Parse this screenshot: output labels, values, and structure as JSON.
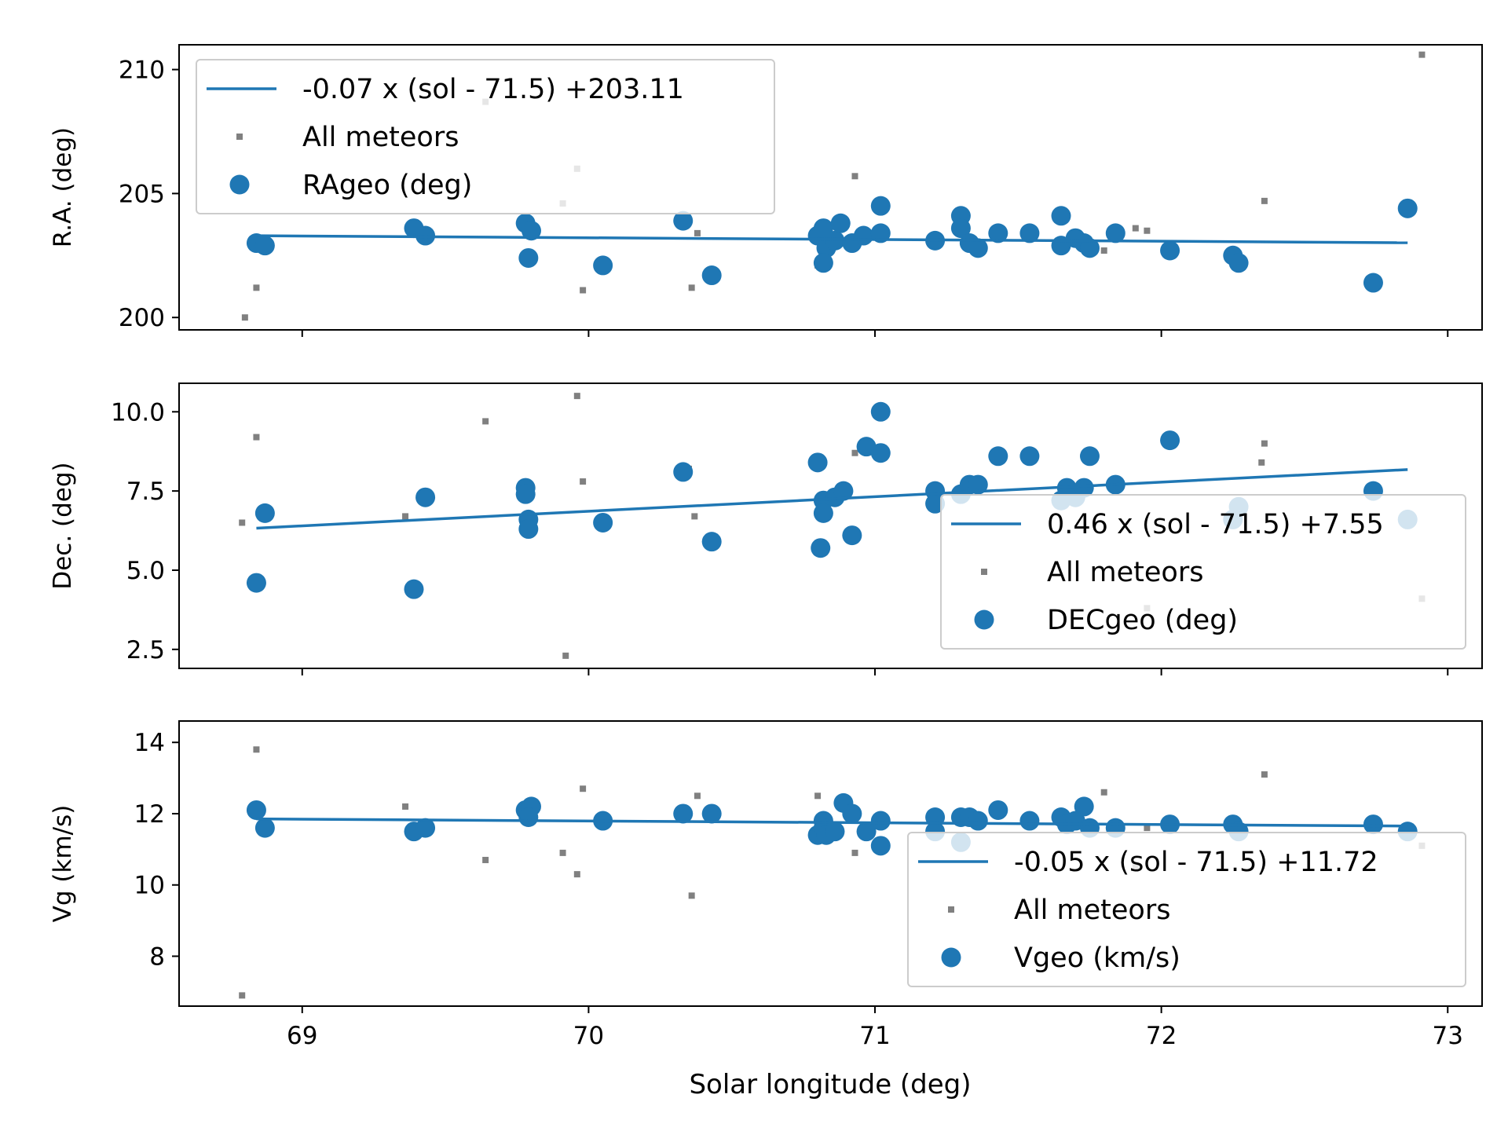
{
  "figure": {
    "xlabel": "Solar longitude (deg)"
  },
  "colors": {
    "main": "#1f77b4",
    "all": "#808080",
    "axis": "#000000",
    "legend_border": "#cccccc"
  },
  "chart_data": [
    {
      "type": "scatter",
      "ylabel": "R.A. (deg)",
      "xlim": [
        68.57,
        73.12
      ],
      "ylim": [
        199.5,
        211.0
      ],
      "yticks": [
        {
          "v": 200,
          "label": "200"
        },
        {
          "v": 205,
          "label": "205"
        },
        {
          "v": 210,
          "label": "210"
        }
      ],
      "legend_position": "upper left",
      "fit": {
        "label": "-0.07 x (sol - 71.5) +203.11",
        "slope": -0.07,
        "intercept": 203.11,
        "x_range": [
          68.84,
          72.86
        ]
      },
      "series": [
        {
          "name": "All meteors",
          "points": [
            [
              68.8,
              200.0
            ],
            [
              68.84,
              201.2
            ],
            [
              69.38,
              203.6
            ],
            [
              69.64,
              208.7
            ],
            [
              69.78,
              203.7
            ],
            [
              69.91,
              204.6
            ],
            [
              69.96,
              206.0
            ],
            [
              69.98,
              201.1
            ],
            [
              70.36,
              201.2
            ],
            [
              70.38,
              203.4
            ],
            [
              70.8,
              202.1
            ],
            [
              70.82,
              203.0
            ],
            [
              70.93,
              205.7
            ],
            [
              71.22,
              203.2
            ],
            [
              71.36,
              203.0
            ],
            [
              71.7,
              203.1
            ],
            [
              71.8,
              202.7
            ],
            [
              71.91,
              203.6
            ],
            [
              71.95,
              203.5
            ],
            [
              72.36,
              204.7
            ],
            [
              72.91,
              210.6
            ]
          ]
        },
        {
          "name": "RAgeo (deg)",
          "points": [
            [
              68.84,
              203.0
            ],
            [
              68.87,
              202.9
            ],
            [
              69.39,
              203.6
            ],
            [
              69.43,
              203.3
            ],
            [
              69.78,
              203.8
            ],
            [
              69.8,
              203.5
            ],
            [
              69.79,
              202.4
            ],
            [
              70.05,
              202.1
            ],
            [
              70.33,
              203.9
            ],
            [
              70.43,
              201.7
            ],
            [
              70.8,
              203.3
            ],
            [
              70.82,
              203.6
            ],
            [
              70.83,
              202.8
            ],
            [
              70.82,
              202.2
            ],
            [
              70.86,
              203.1
            ],
            [
              70.88,
              203.8
            ],
            [
              70.92,
              203.0
            ],
            [
              70.96,
              203.3
            ],
            [
              71.02,
              204.5
            ],
            [
              71.02,
              203.4
            ],
            [
              71.21,
              203.1
            ],
            [
              71.3,
              204.1
            ],
            [
              71.3,
              203.6
            ],
            [
              71.33,
              203.0
            ],
            [
              71.36,
              202.8
            ],
            [
              71.43,
              203.4
            ],
            [
              71.54,
              203.4
            ],
            [
              71.65,
              204.1
            ],
            [
              71.65,
              202.9
            ],
            [
              71.7,
              203.2
            ],
            [
              71.73,
              203.0
            ],
            [
              71.75,
              202.8
            ],
            [
              71.84,
              203.4
            ],
            [
              72.03,
              202.7
            ],
            [
              72.25,
              202.5
            ],
            [
              72.27,
              202.2
            ],
            [
              72.74,
              201.4
            ],
            [
              72.86,
              204.4
            ]
          ]
        }
      ]
    },
    {
      "type": "scatter",
      "ylabel": "Dec. (deg)",
      "xlim": [
        68.57,
        73.12
      ],
      "ylim": [
        1.9,
        10.9
      ],
      "yticks": [
        {
          "v": 2.5,
          "label": "2.5"
        },
        {
          "v": 5.0,
          "label": "5.0"
        },
        {
          "v": 7.5,
          "label": "7.5"
        },
        {
          "v": 10.0,
          "label": "10.0"
        }
      ],
      "legend_position": "lower right",
      "fit": {
        "label": "0.46 x (sol - 71.5) +7.55",
        "slope": 0.46,
        "intercept": 7.55,
        "x_range": [
          68.84,
          72.86
        ]
      },
      "series": [
        {
          "name": "All meteors",
          "points": [
            [
              68.79,
              6.5
            ],
            [
              68.84,
              9.2
            ],
            [
              69.36,
              6.7
            ],
            [
              69.64,
              9.7
            ],
            [
              69.92,
              2.3
            ],
            [
              69.96,
              10.5
            ],
            [
              69.98,
              7.8
            ],
            [
              70.37,
              6.7
            ],
            [
              70.35,
              8.2
            ],
            [
              70.93,
              8.7
            ],
            [
              71.95,
              3.8
            ],
            [
              72.36,
              9.0
            ],
            [
              72.35,
              8.4
            ],
            [
              72.91,
              4.1
            ]
          ]
        },
        {
          "name": "DECgeo (deg)",
          "points": [
            [
              68.84,
              4.6
            ],
            [
              68.87,
              6.8
            ],
            [
              69.39,
              4.4
            ],
            [
              69.43,
              7.3
            ],
            [
              69.78,
              7.6
            ],
            [
              69.78,
              7.4
            ],
            [
              69.79,
              6.6
            ],
            [
              69.79,
              6.3
            ],
            [
              70.05,
              6.5
            ],
            [
              70.33,
              8.1
            ],
            [
              70.43,
              5.9
            ],
            [
              70.8,
              8.4
            ],
            [
              70.81,
              5.7
            ],
            [
              70.82,
              7.2
            ],
            [
              70.82,
              6.8
            ],
            [
              70.86,
              7.3
            ],
            [
              70.89,
              7.5
            ],
            [
              70.92,
              6.1
            ],
            [
              70.97,
              8.9
            ],
            [
              71.02,
              10.0
            ],
            [
              71.02,
              8.7
            ],
            [
              71.21,
              7.5
            ],
            [
              71.21,
              7.1
            ],
            [
              71.3,
              7.4
            ],
            [
              71.33,
              7.7
            ],
            [
              71.36,
              7.7
            ],
            [
              71.43,
              8.6
            ],
            [
              71.54,
              8.6
            ],
            [
              71.65,
              7.2
            ],
            [
              71.67,
              7.6
            ],
            [
              71.7,
              7.3
            ],
            [
              71.73,
              7.6
            ],
            [
              71.75,
              8.6
            ],
            [
              71.84,
              7.7
            ],
            [
              72.03,
              9.1
            ],
            [
              72.25,
              6.6
            ],
            [
              72.27,
              7.0
            ],
            [
              72.74,
              7.5
            ],
            [
              72.86,
              6.6
            ]
          ]
        }
      ]
    },
    {
      "type": "scatter",
      "ylabel": "Vg (km/s)",
      "xlim": [
        68.57,
        73.12
      ],
      "ylim": [
        6.6,
        14.6
      ],
      "yticks": [
        {
          "v": 8,
          "label": "8"
        },
        {
          "v": 10,
          "label": "10"
        },
        {
          "v": 12,
          "label": "12"
        },
        {
          "v": 14,
          "label": "14"
        }
      ],
      "legend_position": "lower right",
      "fit": {
        "label": "-0.05 x (sol - 71.5) +11.72",
        "slope": -0.05,
        "intercept": 11.72,
        "x_range": [
          68.84,
          72.86
        ]
      },
      "series": [
        {
          "name": "All meteors",
          "points": [
            [
              68.79,
              6.9
            ],
            [
              68.84,
              13.8
            ],
            [
              69.36,
              12.2
            ],
            [
              69.64,
              10.7
            ],
            [
              69.91,
              10.9
            ],
            [
              69.96,
              10.3
            ],
            [
              69.98,
              12.7
            ],
            [
              70.36,
              9.7
            ],
            [
              70.38,
              12.5
            ],
            [
              70.8,
              12.5
            ],
            [
              70.93,
              10.9
            ],
            [
              71.8,
              12.6
            ],
            [
              71.91,
              10.5
            ],
            [
              71.95,
              11.6
            ],
            [
              72.36,
              13.1
            ],
            [
              72.91,
              11.1
            ]
          ]
        },
        {
          "name": "Vgeo (km/s)",
          "points": [
            [
              68.84,
              12.1
            ],
            [
              68.87,
              11.6
            ],
            [
              69.39,
              11.5
            ],
            [
              69.43,
              11.6
            ],
            [
              69.78,
              12.1
            ],
            [
              69.8,
              12.2
            ],
            [
              69.79,
              11.9
            ],
            [
              70.05,
              11.8
            ],
            [
              70.33,
              12.0
            ],
            [
              70.43,
              12.0
            ],
            [
              70.8,
              11.4
            ],
            [
              70.82,
              11.8
            ],
            [
              70.82,
              11.6
            ],
            [
              70.83,
              11.4
            ],
            [
              70.86,
              11.5
            ],
            [
              70.89,
              12.3
            ],
            [
              70.92,
              12.0
            ],
            [
              70.97,
              11.5
            ],
            [
              71.02,
              11.8
            ],
            [
              71.02,
              11.1
            ],
            [
              71.21,
              11.9
            ],
            [
              71.21,
              11.5
            ],
            [
              71.3,
              11.9
            ],
            [
              71.3,
              11.2
            ],
            [
              71.33,
              11.9
            ],
            [
              71.36,
              11.8
            ],
            [
              71.43,
              12.1
            ],
            [
              71.54,
              11.8
            ],
            [
              71.65,
              11.9
            ],
            [
              71.67,
              11.7
            ],
            [
              71.7,
              11.8
            ],
            [
              71.73,
              12.2
            ],
            [
              71.75,
              11.6
            ],
            [
              71.84,
              11.6
            ],
            [
              72.03,
              11.7
            ],
            [
              72.25,
              11.7
            ],
            [
              72.27,
              11.5
            ],
            [
              72.74,
              11.7
            ],
            [
              72.86,
              11.5
            ]
          ]
        }
      ]
    }
  ],
  "xaxis": {
    "ticks": [
      {
        "v": 69,
        "label": "69"
      },
      {
        "v": 70,
        "label": "70"
      },
      {
        "v": 71,
        "label": "71"
      },
      {
        "v": 72,
        "label": "72"
      },
      {
        "v": 73,
        "label": "73"
      }
    ]
  }
}
